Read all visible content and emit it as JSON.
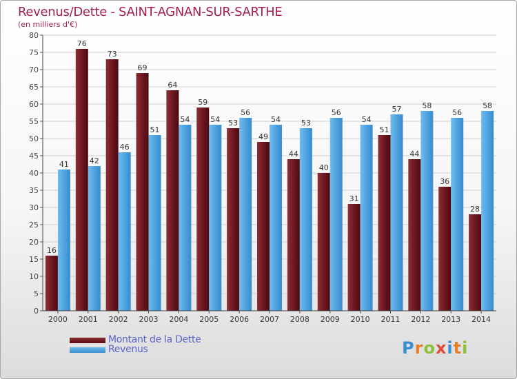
{
  "header": {
    "title": "Revenus/Dette - SAINT-AGNAN-SUR-SARTHE",
    "subtitle": "(en milliers d'€)"
  },
  "legend": {
    "items": [
      {
        "label": "Montant de la Dette",
        "color": "#6e1820"
      },
      {
        "label": "Revenus",
        "color": "#4fa3e0"
      }
    ]
  },
  "logo": {
    "text": "Proxiti",
    "letters": [
      "P",
      "r",
      "o",
      "x",
      "i",
      "t",
      "i"
    ],
    "colors": [
      "#3a8fd0",
      "#e8802a",
      "#8cbf3a",
      "#e14a3a",
      "#3a8fd0",
      "#e8802a",
      "#8cbf3a"
    ]
  },
  "colors": {
    "title": "#a3224a",
    "debt": "#6e1820",
    "revenue": "#4fa3e0",
    "grid": "#d0d0d0"
  },
  "chart_data": {
    "type": "bar",
    "title": "Revenus/Dette - SAINT-AGNAN-SUR-SARTHE",
    "subtitle": "(en milliers d'€)",
    "xlabel": "",
    "ylabel": "",
    "ylim": [
      0,
      80
    ],
    "yticks": [
      0,
      5,
      10,
      15,
      20,
      25,
      30,
      35,
      40,
      45,
      50,
      55,
      60,
      65,
      70,
      75,
      80
    ],
    "grid": "horizontal",
    "legend_position": "bottom-left",
    "categories": [
      "2000",
      "2001",
      "2002",
      "2003",
      "2004",
      "2005",
      "2006",
      "2007",
      "2008",
      "2009",
      "2010",
      "2011",
      "2012",
      "2013",
      "2014"
    ],
    "series": [
      {
        "name": "Montant de la Dette",
        "values": [
          16,
          76,
          73,
          69,
          64,
          59,
          53,
          49,
          44,
          40,
          31,
          51,
          44,
          36,
          28
        ]
      },
      {
        "name": "Revenus",
        "values": [
          41,
          42,
          46,
          51,
          54,
          54,
          56,
          54,
          53,
          56,
          54,
          57,
          58,
          56,
          58
        ]
      }
    ]
  }
}
